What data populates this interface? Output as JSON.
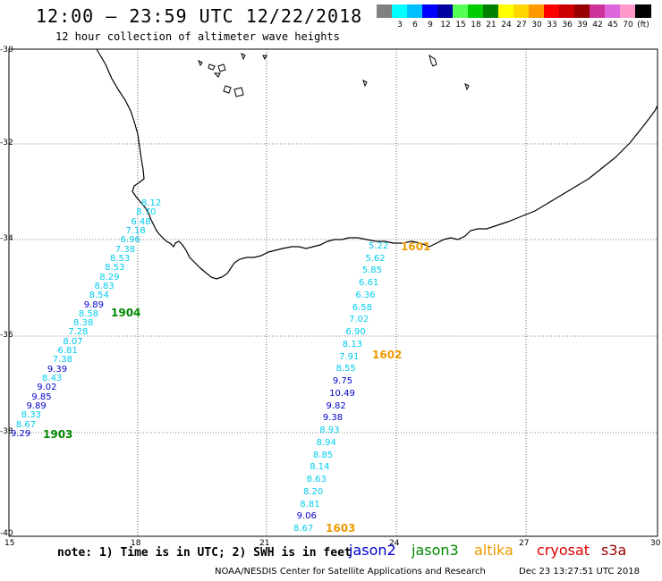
{
  "header": {
    "title": "12:00 – 23:59 UTC 12/22/2018",
    "subtitle": "12 hour collection of altimeter wave heights"
  },
  "legend": {
    "swatches": [
      {
        "color": "#808080",
        "label": ""
      },
      {
        "color": "#00ffff",
        "label": "3"
      },
      {
        "color": "#00bfff",
        "label": "6"
      },
      {
        "color": "#0000ff",
        "label": "9"
      },
      {
        "color": "#0000a0",
        "label": "12"
      },
      {
        "color": "#55ff55",
        "label": "15"
      },
      {
        "color": "#00cc00",
        "label": "18"
      },
      {
        "color": "#008000",
        "label": "21"
      },
      {
        "color": "#ffff00",
        "label": "24"
      },
      {
        "color": "#ffd700",
        "label": "27"
      },
      {
        "color": "#ff9900",
        "label": "30"
      },
      {
        "color": "#ff0000",
        "label": "33"
      },
      {
        "color": "#cc0000",
        "label": "36"
      },
      {
        "color": "#990000",
        "label": "39"
      },
      {
        "color": "#cc3399",
        "label": "42"
      },
      {
        "color": "#dd66dd",
        "label": "45"
      },
      {
        "color": "#ff99cc",
        "label": "70"
      },
      {
        "color": "#000000",
        "label": "(ft)"
      }
    ]
  },
  "axes": {
    "lat_labels": [
      "-30",
      "-32",
      "-34",
      "-36",
      "-38",
      "-40"
    ],
    "lon_labels": [
      "15",
      "18",
      "21",
      "24",
      "27",
      "30"
    ]
  },
  "colors": {
    "light_cyan": "#00ccee",
    "mid_blue": "#00aadd",
    "dark_blue": "#0000cc",
    "time_green": "#008800",
    "time_orange": "#ee9900"
  },
  "track_west": {
    "values": [
      {
        "v": "8.12",
        "c": "light"
      },
      {
        "v": "8.70",
        "c": "light"
      },
      {
        "v": "6.48",
        "c": "light"
      },
      {
        "v": "7.18",
        "c": "light"
      },
      {
        "v": "6.96",
        "c": "light"
      },
      {
        "v": "7.38",
        "c": "light"
      },
      {
        "v": "8.53",
        "c": "light"
      },
      {
        "v": "8.53",
        "c": "light"
      },
      {
        "v": "8.29",
        "c": "light"
      },
      {
        "v": "8.83",
        "c": "light"
      },
      {
        "v": "8.54",
        "c": "light"
      },
      {
        "v": "9.89",
        "c": "dark"
      },
      {
        "v": "8.58",
        "c": "light"
      },
      {
        "v": "8.38",
        "c": "light"
      },
      {
        "v": "7.28",
        "c": "light"
      },
      {
        "v": "8.07",
        "c": "light"
      },
      {
        "v": "6.81",
        "c": "light"
      },
      {
        "v": "7.38",
        "c": "light"
      },
      {
        "v": "9.39",
        "c": "dark"
      },
      {
        "v": "8.43",
        "c": "light"
      },
      {
        "v": "9.02",
        "c": "dark"
      },
      {
        "v": "9.85",
        "c": "dark"
      },
      {
        "v": "9.89",
        "c": "dark"
      },
      {
        "v": "8.33",
        "c": "light"
      },
      {
        "v": "8.67",
        "c": "light"
      },
      {
        "v": "9.29",
        "c": "dark"
      }
    ],
    "times": [
      {
        "label": "1904"
      },
      {
        "label": "1903"
      }
    ]
  },
  "track_east": {
    "values": [
      {
        "v": "5.22",
        "c": "light"
      },
      {
        "v": "5.62",
        "c": "light"
      },
      {
        "v": "5.85",
        "c": "light"
      },
      {
        "v": "6.61",
        "c": "light"
      },
      {
        "v": "6.36",
        "c": "light"
      },
      {
        "v": "6.58",
        "c": "light"
      },
      {
        "v": "7.02",
        "c": "light"
      },
      {
        "v": "6.90",
        "c": "light"
      },
      {
        "v": "8.13",
        "c": "light"
      },
      {
        "v": "7.91",
        "c": "light"
      },
      {
        "v": "8.55",
        "c": "light"
      },
      {
        "v": "9.75",
        "c": "dark"
      },
      {
        "v": "10.49",
        "c": "dark"
      },
      {
        "v": "9.82",
        "c": "dark"
      },
      {
        "v": "9.38",
        "c": "dark"
      },
      {
        "v": "8.93",
        "c": "light"
      },
      {
        "v": "8.94",
        "c": "light"
      },
      {
        "v": "8.85",
        "c": "light"
      },
      {
        "v": "8.14",
        "c": "light"
      },
      {
        "v": "8.63",
        "c": "light"
      },
      {
        "v": "8.20",
        "c": "light"
      },
      {
        "v": "8.81",
        "c": "light"
      },
      {
        "v": "9.06",
        "c": "dark"
      },
      {
        "v": "8.67",
        "c": "light"
      }
    ],
    "times": [
      {
        "label": "1601"
      },
      {
        "label": "1602"
      },
      {
        "label": "1603"
      }
    ]
  },
  "footer": {
    "note": "note: 1) Time is in UTC; 2) SWH is in feet",
    "satellites": [
      {
        "name": "jason2",
        "color": "#0000cc"
      },
      {
        "name": "jason3",
        "color": "#008800"
      },
      {
        "name": "altika",
        "color": "#ee9900"
      },
      {
        "name": "cryosat",
        "color": "#dd0000"
      },
      {
        "name": "s3a",
        "color": "#990000"
      }
    ],
    "credit": "NOAA/NESDIS Center for Satellite Applications and Research",
    "timestamp": "Dec 23 13:27:51 UTC 2018"
  }
}
